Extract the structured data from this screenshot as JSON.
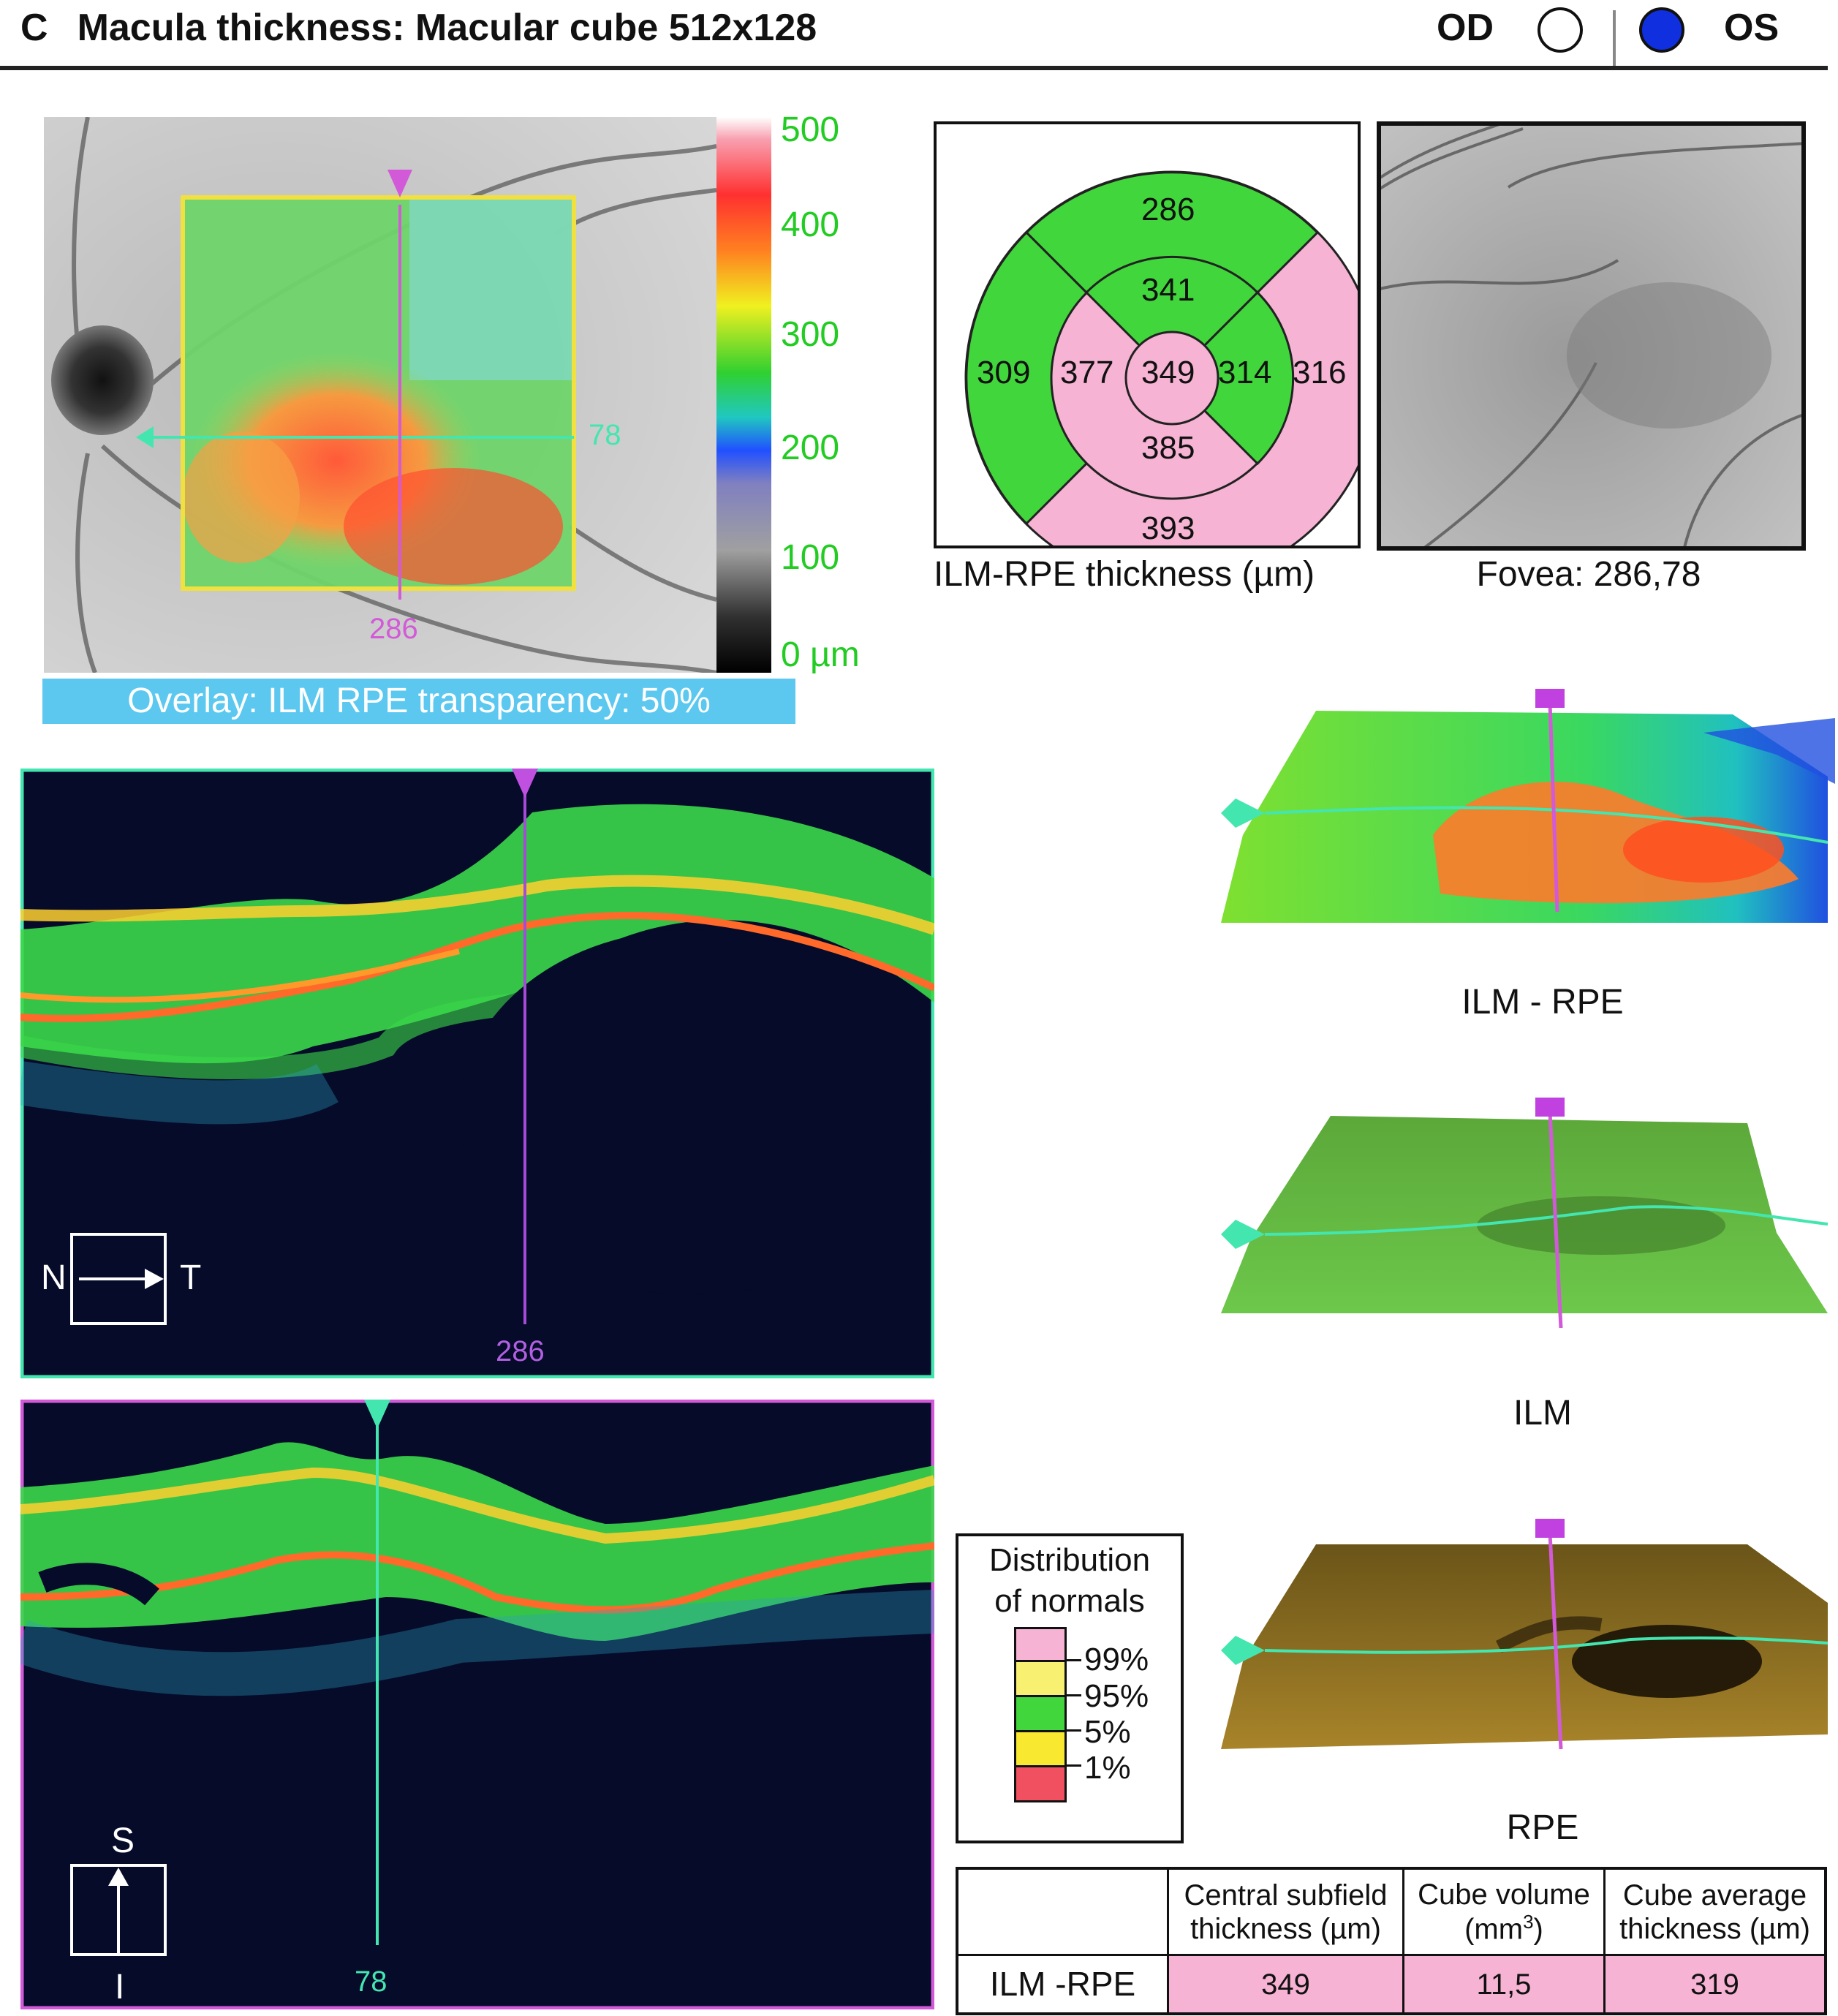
{
  "header": {
    "panel_letter": "C",
    "title": "Macula thickness: Macular cube 512x128",
    "od_label": "OD",
    "os_label": "OS"
  },
  "fundus_map": {
    "scale_ticks": [
      "500",
      "400",
      "300",
      "200",
      "100",
      "0 µm"
    ],
    "horizontal_marker": "78",
    "vertical_marker": "286",
    "overlay_caption": "Overlay: ILM RPE transparency: 50%"
  },
  "etdrs": {
    "caption": "ILM-RPE thickness (µm)",
    "center": "349",
    "inner_superior": "341",
    "inner_nasal": "377",
    "inner_temporal": "314",
    "inner_inferior": "385",
    "outer_superior": "286",
    "outer_nasal": "309",
    "outer_temporal": "316",
    "outer_inferior": "393"
  },
  "fovea": {
    "caption": "Fovea: 286,78"
  },
  "bscan_horizontal": {
    "marker": "286",
    "orient_left": "N",
    "orient_right": "T"
  },
  "bscan_vertical": {
    "marker": "78",
    "orient_top": "S",
    "orient_bottom": "I"
  },
  "surfaces": {
    "ilm_rpe_label": "ILM - RPE",
    "ilm_label": "ILM",
    "rpe_label": "RPE"
  },
  "legend": {
    "title_line1": "Distribution",
    "title_line2": "of normals",
    "items": [
      "99%",
      "95%",
      "5%",
      "1%"
    ]
  },
  "results_table": {
    "col1": "Central subfield thickness (µm)",
    "col2_text": "Cube volume (mm",
    "col2_sup": "3",
    "col2_end": ")",
    "col3": "Cube average thickness (µm)",
    "row_label": "ILM -RPE",
    "central_subfield": "349",
    "cube_volume": "11,5",
    "cube_average": "319"
  },
  "colors": {
    "pink": "#f6b3d4",
    "green": "#41d63b",
    "cyan_line": "#44e6b0",
    "magenta_line": "#d25ad8",
    "overlay_bar": "#5cc8f0"
  }
}
